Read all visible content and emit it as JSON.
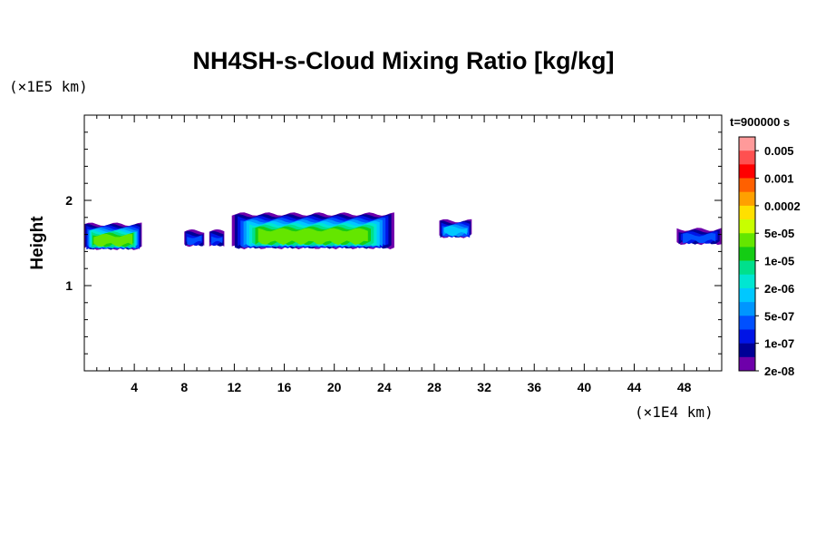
{
  "chart_data": {
    "type": "heatmap",
    "title": "NH4SH-s-Cloud Mixing Ratio [kg/kg]",
    "xlabel": "",
    "ylabel": "Height",
    "x_unit": "(×1E4 km)",
    "y_unit": "(×1E5 km)",
    "time_label": "t=900000 s",
    "xlim": [
      0,
      51
    ],
    "ylim": [
      0,
      3
    ],
    "x_ticks": [
      4,
      8,
      12,
      16,
      20,
      24,
      28,
      32,
      36,
      40,
      44,
      48
    ],
    "y_ticks": [
      1,
      2
    ],
    "colorbar": {
      "labels": [
        "0.005",
        "0.001",
        "0.0002",
        "5e-05",
        "1e-05",
        "2e-06",
        "5e-07",
        "1e-07",
        "2e-08"
      ],
      "colors": [
        "#ff9a9a",
        "#ff5050",
        "#ff0000",
        "#ff6000",
        "#ffa000",
        "#ffe000",
        "#c8ff00",
        "#64e600",
        "#14cc14",
        "#00e08c",
        "#00e6d2",
        "#00c8ff",
        "#0096ff",
        "#0050ff",
        "#0014e6",
        "#000096",
        "#6e00aa"
      ]
    },
    "cloud_layers": [
      {
        "x_start": 0.0,
        "x_end": 4.6,
        "base": 1.44,
        "top": 1.72,
        "max_level": "5e-05"
      },
      {
        "x_start": 8.0,
        "x_end": 9.6,
        "base": 1.48,
        "top": 1.64,
        "max_level": "5e-07"
      },
      {
        "x_start": 10.0,
        "x_end": 11.2,
        "base": 1.48,
        "top": 1.64,
        "max_level": "5e-07"
      },
      {
        "x_start": 11.8,
        "x_end": 24.8,
        "base": 1.45,
        "top": 1.84,
        "max_level": "5e-05"
      },
      {
        "x_start": 28.4,
        "x_end": 31.0,
        "base": 1.58,
        "top": 1.76,
        "max_level": "2e-06"
      },
      {
        "x_start": 47.4,
        "x_end": 51.0,
        "base": 1.5,
        "top": 1.66,
        "max_level": "5e-07"
      }
    ]
  }
}
